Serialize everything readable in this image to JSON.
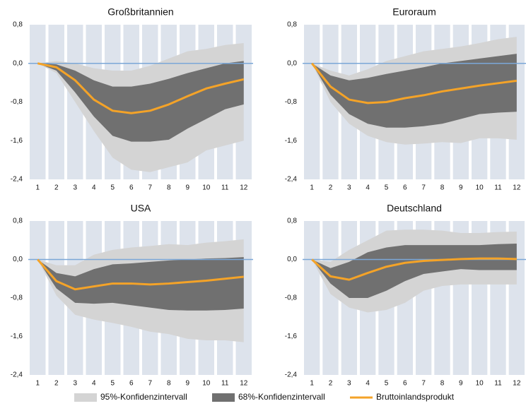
{
  "chart_data": [
    {
      "type": "band-line",
      "title": "Großbritannien",
      "categories": [
        "1",
        "2",
        "3",
        "4",
        "5",
        "6",
        "7",
        "8",
        "9",
        "10",
        "11",
        "12"
      ],
      "ci95_upper": [
        0,
        0.05,
        0,
        -0.1,
        -0.15,
        -0.15,
        -0.05,
        0.1,
        0.25,
        0.3,
        0.38,
        0.42
      ],
      "ci95_lower": [
        0,
        -0.2,
        -0.8,
        -1.4,
        -1.95,
        -2.2,
        -2.25,
        -2.15,
        -2.05,
        -1.8,
        -1.7,
        -1.6
      ],
      "ci68_upper": [
        0,
        -0.02,
        -0.15,
        -0.35,
        -0.48,
        -0.48,
        -0.42,
        -0.32,
        -0.2,
        -0.1,
        0,
        0.05
      ],
      "ci68_lower": [
        0,
        -0.15,
        -0.6,
        -1.1,
        -1.5,
        -1.62,
        -1.62,
        -1.58,
        -1.35,
        -1.15,
        -0.95,
        -0.85
      ],
      "values": [
        0,
        -0.08,
        -0.35,
        -0.75,
        -0.98,
        -1.03,
        -0.98,
        -0.85,
        -0.68,
        -0.52,
        -0.42,
        -0.33
      ],
      "ylim": [
        -2.4,
        0.8
      ],
      "yticks": [
        {
          "value": 0.8,
          "label": "0,8"
        },
        {
          "value": 0,
          "label": "0,0"
        },
        {
          "value": -0.8,
          "label": "-0,8"
        },
        {
          "value": -1.6,
          "label": "-1,6"
        },
        {
          "value": -2.4,
          "label": "-2,4"
        }
      ]
    },
    {
      "type": "band-line",
      "title": "Euroraum",
      "categories": [
        "1",
        "2",
        "3",
        "4",
        "5",
        "6",
        "7",
        "8",
        "9",
        "10",
        "11",
        "12"
      ],
      "ci95_upper": [
        0,
        -0.15,
        -0.25,
        -0.12,
        0.05,
        0.15,
        0.25,
        0.3,
        0.35,
        0.42,
        0.5,
        0.55
      ],
      "ci95_lower": [
        0,
        -0.8,
        -1.25,
        -1.5,
        -1.63,
        -1.68,
        -1.66,
        -1.63,
        -1.65,
        -1.55,
        -1.55,
        -1.58
      ],
      "ci68_upper": [
        0,
        -0.25,
        -0.35,
        -0.3,
        -0.22,
        -0.15,
        -0.08,
        0,
        0.05,
        0.1,
        0.15,
        0.2
      ],
      "ci68_lower": [
        0,
        -0.65,
        -1.05,
        -1.25,
        -1.33,
        -1.33,
        -1.3,
        -1.25,
        -1.15,
        -1.05,
        -1.02,
        -1.0
      ],
      "values": [
        0,
        -0.48,
        -0.75,
        -0.82,
        -0.8,
        -0.72,
        -0.66,
        -0.58,
        -0.52,
        -0.46,
        -0.41,
        -0.36
      ],
      "ylim": [
        -2.4,
        0.8
      ],
      "yticks": [
        {
          "value": 0.8,
          "label": "0,8"
        },
        {
          "value": 0,
          "label": "0,0"
        },
        {
          "value": -0.8,
          "label": "-0,8"
        },
        {
          "value": -1.6,
          "label": "-1,6"
        },
        {
          "value": -2.4,
          "label": "-2,4"
        }
      ]
    },
    {
      "type": "band-line",
      "title": "USA",
      "categories": [
        "1",
        "2",
        "3",
        "4",
        "5",
        "6",
        "7",
        "8",
        "9",
        "10",
        "11",
        "12"
      ],
      "ci95_upper": [
        0,
        -0.12,
        -0.12,
        0.1,
        0.2,
        0.25,
        0.28,
        0.32,
        0.3,
        0.35,
        0.38,
        0.42
      ],
      "ci95_lower": [
        0,
        -0.75,
        -1.15,
        -1.25,
        -1.32,
        -1.4,
        -1.5,
        -1.55,
        -1.65,
        -1.68,
        -1.68,
        -1.72
      ],
      "ci68_upper": [
        0,
        -0.28,
        -0.35,
        -0.2,
        -0.1,
        -0.08,
        -0.05,
        -0.02,
        0,
        0.02,
        0.03,
        0.05
      ],
      "ci68_lower": [
        0,
        -0.6,
        -0.9,
        -0.92,
        -0.9,
        -0.95,
        -1.0,
        -1.05,
        -1.06,
        -1.06,
        -1.05,
        -1.02
      ],
      "values": [
        0,
        -0.45,
        -0.62,
        -0.56,
        -0.5,
        -0.5,
        -0.52,
        -0.5,
        -0.47,
        -0.44,
        -0.4,
        -0.36
      ],
      "ylim": [
        -2.4,
        0.8
      ],
      "yticks": [
        {
          "value": 0.8,
          "label": "0,8"
        },
        {
          "value": 0,
          "label": "0,0"
        },
        {
          "value": -0.8,
          "label": "-0,8"
        },
        {
          "value": -1.6,
          "label": "-1,6"
        },
        {
          "value": -2.4,
          "label": "-2,4"
        }
      ]
    },
    {
      "type": "band-line",
      "title": "Deutschland",
      "categories": [
        "1",
        "2",
        "3",
        "4",
        "5",
        "6",
        "7",
        "8",
        "9",
        "10",
        "11",
        "12"
      ],
      "ci95_upper": [
        0,
        -0.05,
        0.2,
        0.4,
        0.6,
        0.62,
        0.62,
        0.6,
        0.55,
        0.55,
        0.57,
        0.58
      ],
      "ci95_lower": [
        0,
        -0.72,
        -1.0,
        -1.1,
        -1.05,
        -0.9,
        -0.65,
        -0.55,
        -0.52,
        -0.52,
        -0.52,
        -0.52
      ],
      "ci68_upper": [
        0,
        -0.18,
        -0.05,
        0.15,
        0.25,
        0.3,
        0.3,
        0.3,
        0.3,
        0.3,
        0.32,
        0.33
      ],
      "ci68_lower": [
        0,
        -0.5,
        -0.8,
        -0.8,
        -0.65,
        -0.45,
        -0.3,
        -0.25,
        -0.2,
        -0.22,
        -0.22,
        -0.22
      ],
      "values": [
        0,
        -0.35,
        -0.42,
        -0.28,
        -0.15,
        -0.07,
        -0.03,
        -0.01,
        0.01,
        0.02,
        0.02,
        0.01
      ],
      "ylim": [
        -2.4,
        0.8
      ],
      "yticks": [
        {
          "value": 0.8,
          "label": "0,8"
        },
        {
          "value": 0,
          "label": "0,0"
        },
        {
          "value": -0.8,
          "label": "-0,8"
        },
        {
          "value": -1.6,
          "label": "-1,6"
        },
        {
          "value": -2.4,
          "label": "-2,4"
        }
      ]
    }
  ],
  "legend": [
    {
      "name": "95%-Konfidenzintervall",
      "color": "#d4d4d4"
    },
    {
      "name": "68%-Konfidenzintervall",
      "color": "#707070"
    },
    {
      "name": "Bruttoinlandsprodukt",
      "color": "#f4a328"
    }
  ]
}
